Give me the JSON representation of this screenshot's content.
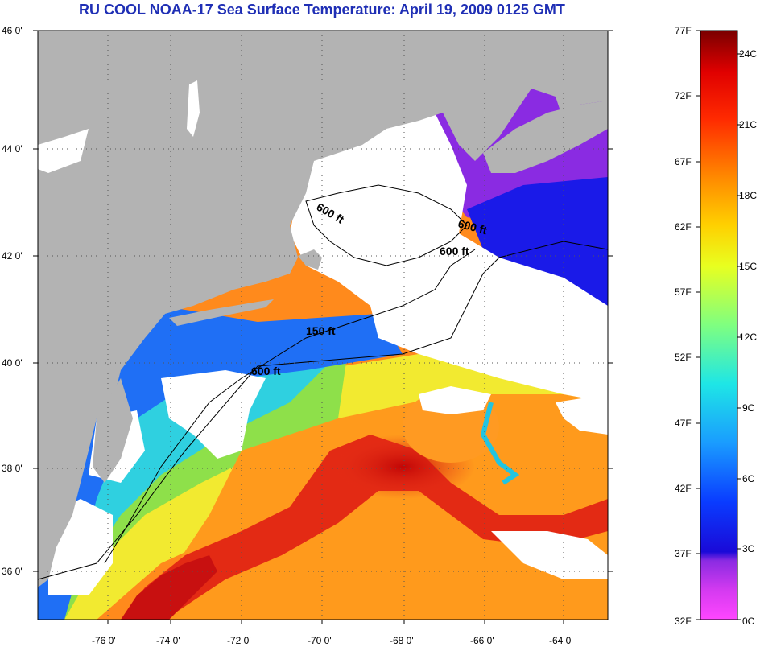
{
  "title": "RU COOL  NOAA-17  Sea Surface Temperature:  April 19, 2009 0125 GMT",
  "latitude_labels": [
    "46 0'",
    "44 0'",
    "42 0'",
    "40 0'",
    "38 0'",
    "36 0'"
  ],
  "longitude_labels": [
    "-76 0'",
    "-74 0'",
    "-72 0'",
    "-70 0'",
    "-68 0'",
    "-66 0'",
    "-64 0'"
  ],
  "contour_labels": [
    "600 ft",
    "600 ft",
    "600 ft",
    "150 ft",
    "600 ft"
  ],
  "colorbar": {
    "fahrenheit_labels": [
      "77F",
      "72F",
      "67F",
      "62F",
      "57F",
      "52F",
      "47F",
      "42F",
      "37F",
      "32F"
    ],
    "celsius_labels": [
      "24C",
      "21C",
      "18C",
      "15C",
      "12C",
      "9C",
      "6C",
      "3C",
      "0C"
    ],
    "range_f": [
      32,
      77
    ],
    "range_c": [
      0,
      25
    ]
  },
  "colors": {
    "land": "#b3b3b3",
    "cloud": "#ffffff",
    "title": "#1f2fb5",
    "warm": "#e8221a",
    "hot": "#c40d0d",
    "orange": "#ff8a1c",
    "yellow": "#f4f030",
    "green": "#8ee04a",
    "cyan": "#2fd0e0",
    "blue": "#1f5ff0",
    "deep_blue": "#1010e0",
    "purple": "#9a2ad8",
    "magenta": "#ff3aff"
  }
}
